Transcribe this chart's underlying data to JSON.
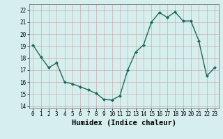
{
  "x": [
    0,
    1,
    2,
    3,
    4,
    5,
    6,
    7,
    8,
    9,
    10,
    11,
    12,
    13,
    14,
    15,
    16,
    17,
    18,
    19,
    20,
    21,
    22,
    23
  ],
  "y": [
    19.1,
    18.1,
    17.2,
    17.6,
    16.0,
    15.85,
    15.6,
    15.35,
    15.05,
    14.55,
    14.5,
    14.85,
    17.0,
    18.5,
    19.1,
    21.0,
    21.8,
    21.4,
    21.85,
    21.1,
    21.1,
    19.45,
    16.5,
    17.2
  ],
  "line_color": "#1a6b5a",
  "marker": "D",
  "marker_size": 2,
  "bg_color": "#d6eeee",
  "grid_color": "#b8d8d8",
  "xlabel": "Humidex (Indice chaleur)",
  "ylim": [
    13.8,
    22.5
  ],
  "xlim": [
    -0.5,
    23.5
  ],
  "yticks": [
    14,
    15,
    16,
    17,
    18,
    19,
    20,
    21,
    22
  ],
  "xticks": [
    0,
    1,
    2,
    3,
    4,
    5,
    6,
    7,
    8,
    9,
    10,
    11,
    12,
    13,
    14,
    15,
    16,
    17,
    18,
    19,
    20,
    21,
    22,
    23
  ],
  "tick_fontsize": 5.5,
  "xlabel_fontsize": 7.5,
  "linewidth": 1.0
}
